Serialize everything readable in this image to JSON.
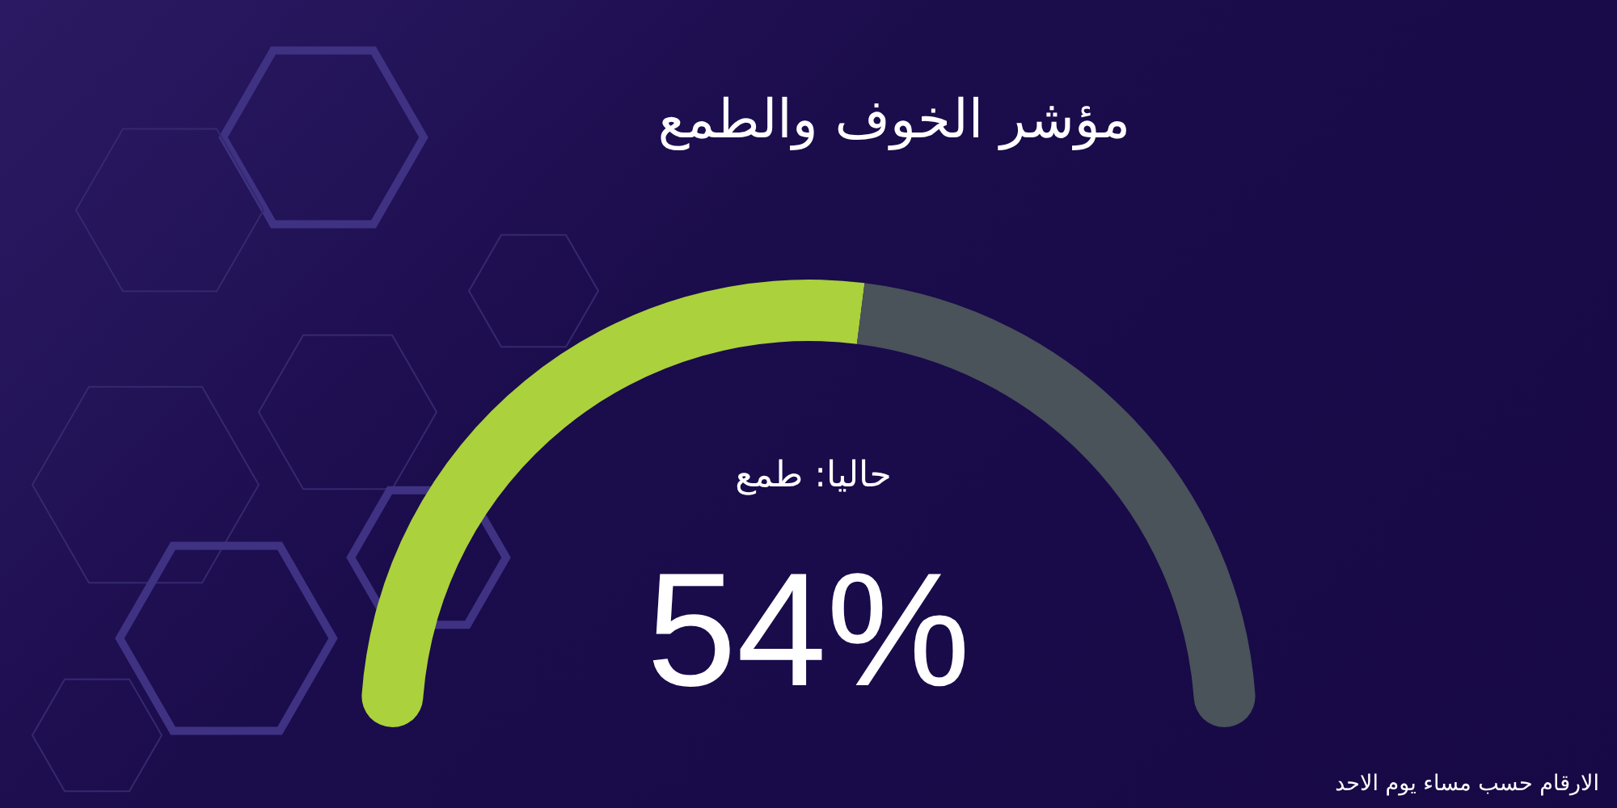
{
  "chart_data": {
    "type": "donut",
    "title": "مؤشر الخوف والطمع",
    "categories": [
      null,
      null
    ],
    "values": [
      54,
      46
    ],
    "colors": [
      "#abd13c",
      "#4a525a"
    ],
    "value_labels": [
      "54%",
      null
    ],
    "annotations": [
      "حاليا: طمع",
      "الارقام حسب مساء يوم الاحد"
    ]
  }
}
